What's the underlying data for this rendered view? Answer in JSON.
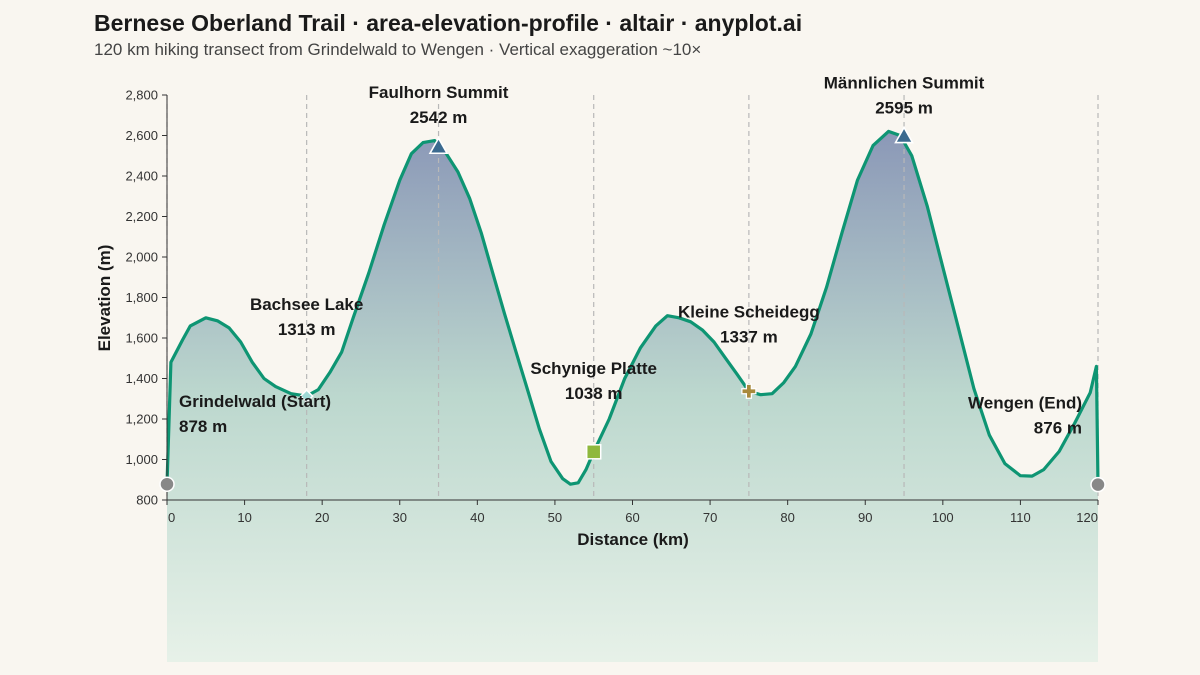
{
  "header": {
    "title": "Bernese Oberland Trail · area-elevation-profile · altair · anyplot.ai",
    "subtitle": "120 km hiking transect from Grindelwald to Wengen · Vertical exaggeration ~10×"
  },
  "chart_data": {
    "type": "area",
    "xlabel": "Distance (km)",
    "ylabel": "Elevation (m)",
    "xlim": [
      0,
      120
    ],
    "ylim": [
      800,
      2800
    ],
    "x_ticks": [
      "0",
      "10",
      "20",
      "30",
      "40",
      "50",
      "60",
      "70",
      "80",
      "90",
      "100",
      "110",
      "120"
    ],
    "y_ticks": [
      "800",
      "1,000",
      "1,200",
      "1,400",
      "1,600",
      "1,800",
      "2,000",
      "2,200",
      "2,400",
      "2,600",
      "2,800"
    ],
    "colors": {
      "line": "#0e9573",
      "fill_top": "#8593b4",
      "fill_bottom": "#e6f1e8",
      "grid": "#b8b8b8"
    },
    "profile": [
      [
        0,
        878
      ],
      [
        0.5,
        1480
      ],
      [
        2,
        1590
      ],
      [
        3,
        1660
      ],
      [
        5,
        1700
      ],
      [
        6.5,
        1685
      ],
      [
        8,
        1650
      ],
      [
        9.5,
        1580
      ],
      [
        11,
        1480
      ],
      [
        12.5,
        1400
      ],
      [
        14,
        1360
      ],
      [
        16,
        1325
      ],
      [
        18,
        1313
      ],
      [
        19.5,
        1345
      ],
      [
        21,
        1430
      ],
      [
        22.5,
        1530
      ],
      [
        24,
        1700
      ],
      [
        26,
        1920
      ],
      [
        28,
        2160
      ],
      [
        30,
        2380
      ],
      [
        31.5,
        2510
      ],
      [
        33,
        2565
      ],
      [
        34.5,
        2575
      ],
      [
        36,
        2510
      ],
      [
        37.5,
        2420
      ],
      [
        39,
        2290
      ],
      [
        40.5,
        2120
      ],
      [
        42,
        1920
      ],
      [
        43.5,
        1720
      ],
      [
        45,
        1530
      ],
      [
        46.5,
        1340
      ],
      [
        48,
        1150
      ],
      [
        49.5,
        990
      ],
      [
        51,
        905
      ],
      [
        52,
        878
      ],
      [
        53,
        885
      ],
      [
        54,
        950
      ],
      [
        55,
        1038
      ],
      [
        57,
        1200
      ],
      [
        59,
        1400
      ],
      [
        61,
        1550
      ],
      [
        63,
        1660
      ],
      [
        64.5,
        1710
      ],
      [
        66,
        1700
      ],
      [
        67.5,
        1680
      ],
      [
        69,
        1640
      ],
      [
        70.5,
        1580
      ],
      [
        72,
        1500
      ],
      [
        73.5,
        1420
      ],
      [
        75,
        1337
      ],
      [
        76.5,
        1320
      ],
      [
        78,
        1325
      ],
      [
        79.5,
        1380
      ],
      [
        81,
        1460
      ],
      [
        83,
        1620
      ],
      [
        85,
        1850
      ],
      [
        87,
        2120
      ],
      [
        89,
        2380
      ],
      [
        91,
        2550
      ],
      [
        93,
        2620
      ],
      [
        94.5,
        2600
      ],
      [
        96,
        2500
      ],
      [
        98,
        2250
      ],
      [
        100,
        1950
      ],
      [
        102,
        1650
      ],
      [
        104,
        1350
      ],
      [
        106,
        1120
      ],
      [
        108,
        980
      ],
      [
        110,
        920
      ],
      [
        111.5,
        918
      ],
      [
        113,
        950
      ],
      [
        115,
        1040
      ],
      [
        117,
        1180
      ],
      [
        119,
        1330
      ],
      [
        119.8,
        1460
      ],
      [
        120,
        876
      ]
    ],
    "waypoints": [
      {
        "name": "Grindelwald (Start)",
        "distance": 0,
        "elevation": 878,
        "label": "878 m",
        "marker": "circle",
        "color": "#888888"
      },
      {
        "name": "Bachsee Lake",
        "distance": 18,
        "elevation": 1313,
        "label": "1313 m",
        "marker": "diamond",
        "color": "#9fd9d6"
      },
      {
        "name": "Faulhorn Summit",
        "distance": 35,
        "elevation": 2542,
        "label": "2542 m",
        "marker": "triangle",
        "color": "#3b6a8f"
      },
      {
        "name": "Schynige Platte",
        "distance": 55,
        "elevation": 1038,
        "label": "1038 m",
        "marker": "square",
        "color": "#8fb83d"
      },
      {
        "name": "Kleine Scheidegg",
        "distance": 75,
        "elevation": 1337,
        "label": "1337 m",
        "marker": "cross",
        "color": "#a88a3c"
      },
      {
        "name": "Männlichen Summit",
        "distance": 95,
        "elevation": 2595,
        "label": "2595 m",
        "marker": "triangle",
        "color": "#3b6a8f"
      },
      {
        "name": "Wengen (End)",
        "distance": 120,
        "elevation": 876,
        "label": "876 m",
        "marker": "circle",
        "color": "#888888"
      }
    ],
    "grid": false,
    "legend": "none"
  }
}
